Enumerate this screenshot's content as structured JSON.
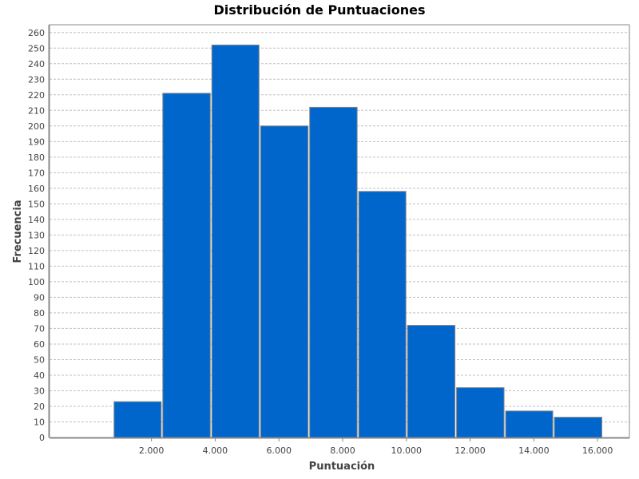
{
  "chart_data": {
    "type": "bar",
    "title": "Distribución de Puntuaciones",
    "xlabel": "Puntuación",
    "ylabel": "Frecuencia",
    "bins": [
      {
        "start": 800,
        "end": 2330,
        "value": 23
      },
      {
        "start": 2330,
        "end": 3870,
        "value": 221
      },
      {
        "start": 3870,
        "end": 5400,
        "value": 252
      },
      {
        "start": 5400,
        "end": 6940,
        "value": 200
      },
      {
        "start": 6940,
        "end": 8480,
        "value": 212
      },
      {
        "start": 8480,
        "end": 10010,
        "value": 158
      },
      {
        "start": 10010,
        "end": 11550,
        "value": 72
      },
      {
        "start": 11550,
        "end": 13090,
        "value": 32
      },
      {
        "start": 13090,
        "end": 14620,
        "value": 17
      },
      {
        "start": 14620,
        "end": 16160,
        "value": 13
      }
    ],
    "xlim": [
      -1200,
      17000
    ],
    "ylim": [
      0,
      265
    ],
    "x_ticks": [
      2000,
      4000,
      6000,
      8000,
      10000,
      12000,
      14000,
      16000
    ],
    "x_tick_labels": [
      "2.000",
      "4.000",
      "6.000",
      "8.000",
      "10.000",
      "12.000",
      "14.000",
      "16.000"
    ],
    "y_ticks": [
      0,
      10,
      20,
      30,
      40,
      50,
      60,
      70,
      80,
      90,
      100,
      110,
      120,
      130,
      140,
      150,
      160,
      170,
      180,
      190,
      200,
      210,
      220,
      230,
      240,
      250,
      260
    ],
    "grid": true,
    "colors": {
      "bar_fill": "#0066cc",
      "bar_stroke": "#888888",
      "grid": "#c0c0c0",
      "axis": "#888888",
      "plot_border": "#888888"
    }
  }
}
